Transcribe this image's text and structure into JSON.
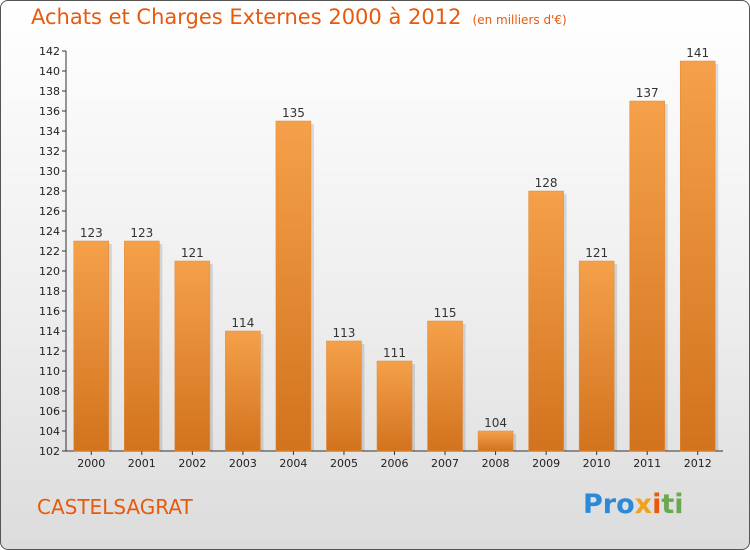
{
  "title": "Achats et Charges Externes 2000 à 2012",
  "subtitle": "(en milliers d'€)",
  "commune": "CASTELSAGRAT",
  "logo": "Proxiti",
  "colors": {
    "bar": "#f5a04a",
    "bar_dark": "#d2731e",
    "title": "#e8590c"
  },
  "chart_data": {
    "type": "bar",
    "categories": [
      "2000",
      "2001",
      "2002",
      "2003",
      "2004",
      "2005",
      "2006",
      "2007",
      "2008",
      "2009",
      "2010",
      "2011",
      "2012"
    ],
    "values": [
      123,
      123,
      121,
      114,
      135,
      113,
      111,
      115,
      104,
      128,
      121,
      137,
      141
    ],
    "ylim": [
      102,
      142
    ],
    "yticks": [
      102,
      104,
      106,
      108,
      110,
      112,
      114,
      116,
      118,
      120,
      122,
      124,
      126,
      128,
      130,
      132,
      134,
      136,
      138,
      140,
      142
    ],
    "grid": false
  }
}
